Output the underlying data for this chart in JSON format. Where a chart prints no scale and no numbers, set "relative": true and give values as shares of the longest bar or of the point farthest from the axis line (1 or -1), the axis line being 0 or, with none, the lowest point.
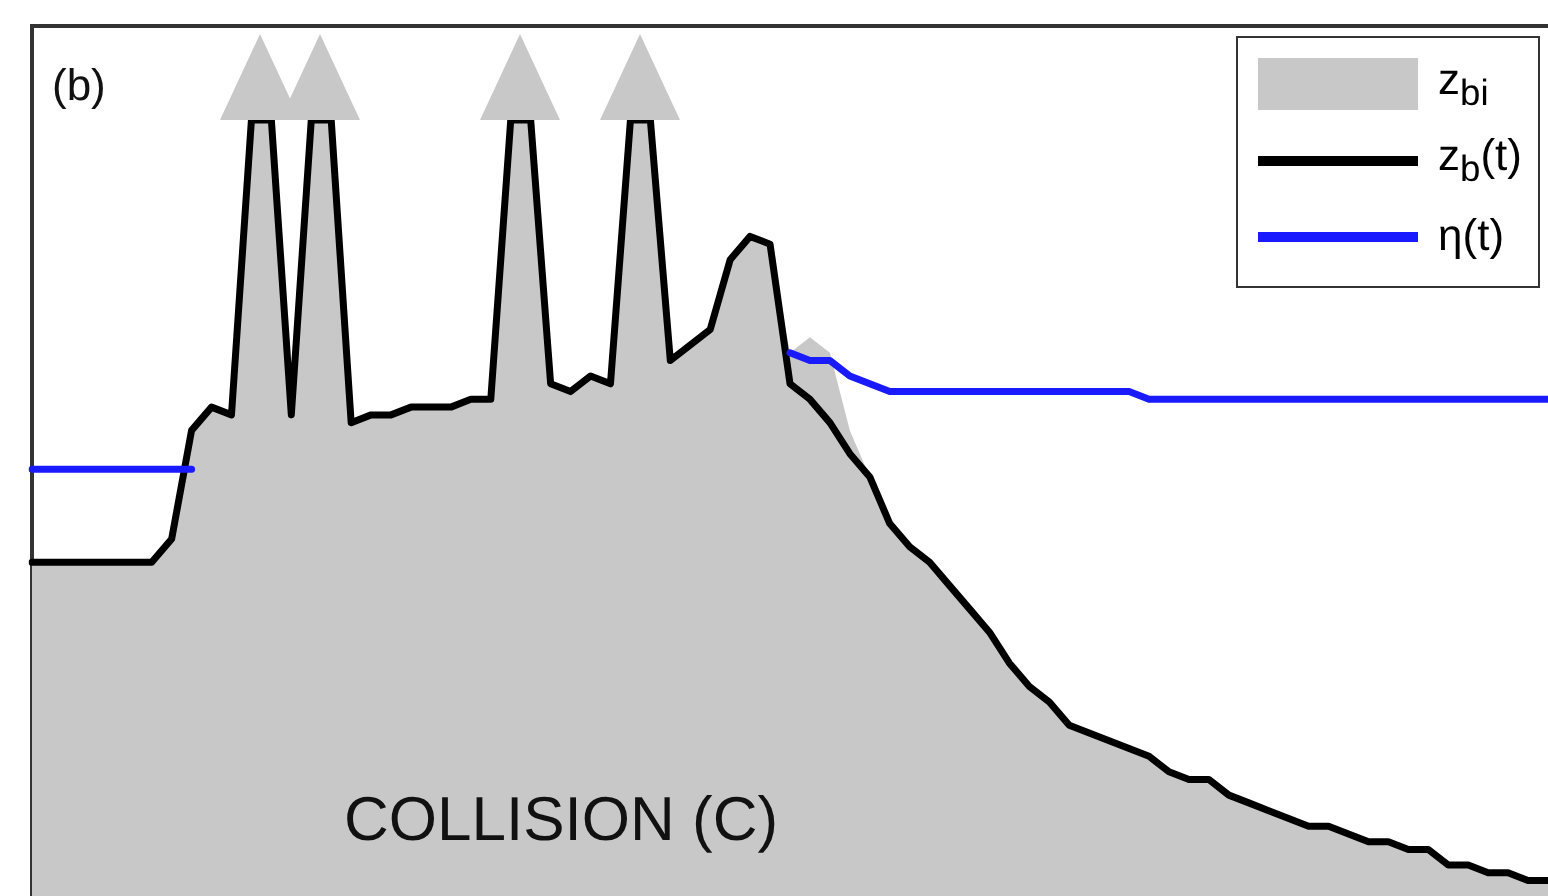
{
  "chart_data": {
    "type": "line",
    "relative": true,
    "marker": "none",
    "legend": "top right",
    "annotations": [
      "(b)",
      "COLLISION (C)"
    ],
    "categories": [
      null,
      null,
      null,
      null,
      null,
      null,
      null,
      null,
      null,
      null,
      null,
      null,
      null,
      null,
      null,
      null,
      null,
      null,
      null,
      null,
      null,
      null,
      null,
      null,
      null,
      null,
      null,
      null,
      null,
      null,
      null,
      null,
      null,
      null,
      null,
      null,
      null,
      null,
      null,
      null,
      null,
      null,
      null,
      null,
      null,
      null,
      null,
      null,
      null,
      null,
      null,
      null,
      null,
      null,
      null,
      null,
      null,
      null,
      null,
      null,
      null,
      null,
      null,
      null,
      null,
      null,
      null,
      null,
      null,
      null,
      null,
      null,
      null,
      null,
      null,
      null,
      null
    ],
    "series": [
      {
        "name": "z$_{bi}$",
        "type": "area",
        "color": "#c8c8c8",
        "values": [
          0.43,
          0.43,
          0.43,
          0.43,
          0.43,
          0.43,
          0.43,
          0.46,
          0.6,
          0.63,
          0.62,
          1,
          1,
          0.62,
          1,
          1,
          0.61,
          0.62,
          0.62,
          0.63,
          0.63,
          0.63,
          0.64,
          0.64,
          1,
          1,
          0.66,
          0.65,
          0.67,
          0.66,
          1,
          1,
          0.69,
          0.71,
          0.73,
          0.82,
          0.85,
          0.84,
          0.7,
          0.72,
          0.7,
          0.6,
          0.54,
          0.48,
          0.45,
          0.43,
          0.4,
          0.37,
          0.34,
          0.3,
          0.27,
          0.25,
          0.22,
          0.21,
          0.2,
          0.19,
          0.18,
          0.16,
          0.15,
          0.15,
          0.13,
          0.12,
          0.11,
          0.1,
          0.09,
          0.09,
          0.08,
          0.07,
          0.07,
          0.06,
          0.06,
          0.04,
          0.04,
          0.03,
          0.03,
          0.02,
          0.02
        ]
      },
      {
        "name": "z$_{b}$(t)",
        "type": "line",
        "color": "#000000",
        "values": [
          0.43,
          0.43,
          0.43,
          0.43,
          0.43,
          0.43,
          0.43,
          0.46,
          0.6,
          0.63,
          0.62,
          1,
          1,
          0.62,
          1,
          1,
          0.61,
          0.62,
          0.62,
          0.63,
          0.63,
          0.63,
          0.64,
          0.64,
          1,
          1,
          0.66,
          0.65,
          0.67,
          0.66,
          1,
          1,
          0.69,
          0.71,
          0.73,
          0.82,
          0.85,
          0.84,
          0.66,
          0.64,
          0.61,
          0.57,
          0.54,
          0.48,
          0.45,
          0.43,
          0.4,
          0.37,
          0.34,
          0.3,
          0.27,
          0.25,
          0.22,
          0.21,
          0.2,
          0.19,
          0.18,
          0.16,
          0.15,
          0.15,
          0.13,
          0.12,
          0.11,
          0.1,
          0.09,
          0.09,
          0.08,
          0.07,
          0.07,
          0.06,
          0.06,
          0.04,
          0.04,
          0.03,
          0.03,
          0.02,
          0.02
        ]
      },
      {
        "name": "η(t)",
        "type": "line",
        "color": "#1a1aff",
        "values": [
          0.55,
          0.55,
          0.55,
          0.55,
          0.55,
          0.55,
          0.55,
          0.55,
          0.55,
          null,
          null,
          null,
          null,
          null,
          null,
          null,
          null,
          null,
          null,
          null,
          null,
          null,
          null,
          null,
          null,
          null,
          null,
          null,
          null,
          null,
          null,
          null,
          null,
          null,
          null,
          null,
          null,
          null,
          0.7,
          0.69,
          0.69,
          0.67,
          0.66,
          0.65,
          0.65,
          0.65,
          0.65,
          0.65,
          0.65,
          0.65,
          0.65,
          0.65,
          0.65,
          0.65,
          0.65,
          0.65,
          0.64,
          0.64,
          0.64,
          0.64,
          0.64,
          0.64,
          0.64,
          0.64,
          0.64,
          0.64,
          0.64,
          0.64,
          0.64,
          0.64,
          0.64,
          0.64,
          0.64,
          0.64,
          0.64,
          0.64,
          0.64
        ]
      }
    ]
  }
}
